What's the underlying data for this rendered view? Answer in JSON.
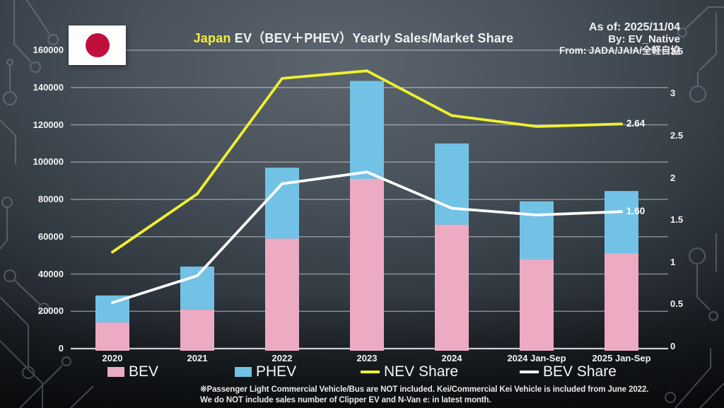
{
  "header": {
    "title_highlight": "Japan",
    "title_rest": " EV（BEV＋PHEV）Yearly Sales/Market Share",
    "as_of": "As of: 2025/11/04",
    "by": "By: EV_Native",
    "from": "From: JADA/JAIA/全軽自協"
  },
  "colors": {
    "bev_pink": "#ecabc2",
    "phev_blue": "#72c2e6",
    "nev_yellow": "#eff032",
    "bev_share_white": "#ffffff",
    "grid": "rgba(205,211,218,0.55)",
    "axis": "rgba(222,227,233,0.9)",
    "title_highlight": "#f3ef39",
    "flag_red": "#c00f3c"
  },
  "chart_data": {
    "type": "bar",
    "subtype": "stacked-bars-with-lines-combo",
    "title": "Japan EV（BEV＋PHEV）Yearly Sales/Market Share",
    "categories": [
      "2020",
      "2021",
      "2022",
      "2023",
      "2024",
      "2024 Jan-Sep",
      "2025 Jan-Sep"
    ],
    "bar_series": [
      {
        "name": "BEV",
        "color": "#ecabc2",
        "axis": "left",
        "values": [
          14000,
          21000,
          59000,
          91000,
          66500,
          48000,
          51000
        ]
      },
      {
        "name": "PHEV",
        "color": "#72c2e6",
        "axis": "left",
        "values": [
          14500,
          23000,
          38000,
          52500,
          43500,
          31000,
          33500
        ]
      }
    ],
    "line_series": [
      {
        "name": "NEV Share",
        "color": "#eff032",
        "axis": "right",
        "values": [
          1.12,
          1.81,
          3.18,
          3.27,
          2.74,
          2.61,
          2.64
        ]
      },
      {
        "name": "BEV Share",
        "color": "#ffffff",
        "axis": "right",
        "values": [
          0.52,
          0.84,
          1.93,
          2.07,
          1.64,
          1.56,
          1.6
        ]
      }
    ],
    "stacked": true,
    "grid": "horizontal-left-axis",
    "legend_position": "bottom",
    "left_axis": {
      "min": 0,
      "max": 160000,
      "step": 20000,
      "tick_labels": [
        "0",
        "20000",
        "40000",
        "60000",
        "80000",
        "100000",
        "120000",
        "140000",
        "160000"
      ]
    },
    "right_axis": {
      "min": 0,
      "max": 3.5,
      "step": 0.5,
      "tick_labels": [
        "0",
        "0.5",
        "1",
        "1.5",
        "2",
        "2.5",
        "3",
        "3.5"
      ]
    },
    "end_labels": [
      {
        "series": "NEV Share",
        "text": "2.64"
      },
      {
        "series": "BEV Share",
        "text": "1.60"
      }
    ]
  },
  "legend": [
    {
      "label": "BEV",
      "swatch": "pink-box"
    },
    {
      "label": "PHEV",
      "swatch": "blue-box"
    },
    {
      "label": "NEV Share",
      "swatch": "yellow-line"
    },
    {
      "label": "BEV Share",
      "swatch": "white-line"
    }
  ],
  "footnote": {
    "line1": "※Passenger Light Commercial Vehicle/Bus are NOT included. Kei/Commercial Kei Vehicle is included from June 2022.",
    "line2": "We do NOT include sales number of Clipper EV and N-Van e: in latest month."
  }
}
